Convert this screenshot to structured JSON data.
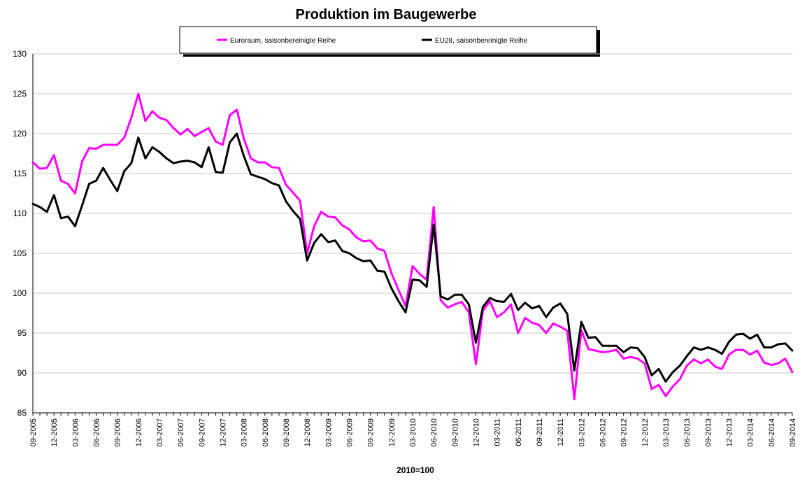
{
  "chart_data": {
    "type": "line",
    "title": "Produktion im Baugewerbe",
    "xlabel": "2010=100",
    "ylabel": "",
    "ylim": [
      85,
      130
    ],
    "yticks": [
      "130",
      "125",
      "120",
      "115",
      "110",
      "105",
      "100",
      "95",
      "90",
      "85"
    ],
    "grid": "horizontal",
    "legend_position": "top",
    "x": [
      "09-2005",
      "10-2005",
      "11-2005",
      "12-2005",
      "01-2006",
      "02-2006",
      "03-2006",
      "04-2006",
      "05-2006",
      "06-2006",
      "07-2006",
      "08-2006",
      "09-2006",
      "10-2006",
      "11-2006",
      "12-2006",
      "01-2007",
      "02-2007",
      "03-2007",
      "04-2007",
      "05-2007",
      "06-2007",
      "07-2007",
      "08-2007",
      "09-2007",
      "10-2007",
      "11-2007",
      "12-2007",
      "01-2008",
      "02-2008",
      "03-2008",
      "04-2008",
      "05-2008",
      "06-2008",
      "07-2008",
      "08-2008",
      "09-2008",
      "10-2008",
      "11-2008",
      "12-2008",
      "01-2009",
      "02-2009",
      "03-2009",
      "04-2009",
      "05-2009",
      "06-2009",
      "07-2009",
      "08-2009",
      "09-2009",
      "10-2009",
      "11-2009",
      "12-2009",
      "01-2010",
      "02-2010",
      "03-2010",
      "04-2010",
      "05-2010",
      "06-2010",
      "07-2010",
      "08-2010",
      "09-2010",
      "10-2010",
      "11-2010",
      "12-2010",
      "01-2011",
      "02-2011",
      "03-2011",
      "04-2011",
      "05-2011",
      "06-2011",
      "07-2011",
      "08-2011",
      "09-2011",
      "10-2011",
      "11-2011",
      "12-2011",
      "01-2012",
      "02-2012",
      "03-2012",
      "04-2012",
      "05-2012",
      "06-2012",
      "07-2012",
      "08-2012",
      "09-2012",
      "10-2012",
      "11-2012",
      "12-2012",
      "01-2013",
      "02-2013",
      "03-2013",
      "04-2013",
      "05-2013",
      "06-2013",
      "07-2013",
      "08-2013",
      "09-2013",
      "10-2013",
      "11-2013",
      "12-2013",
      "01-2014",
      "02-2014",
      "03-2014",
      "04-2014",
      "05-2014",
      "06-2014",
      "07-2014",
      "08-2014",
      "09-2014"
    ],
    "xtick_labels": [
      "09-2005",
      "12-2005",
      "03-2006",
      "06-2006",
      "09-2006",
      "12-2006",
      "03-2007",
      "06-2007",
      "09-2007",
      "12-2007",
      "03-2008",
      "06-2008",
      "09-2008",
      "12-2008",
      "03-2009",
      "06-2009",
      "09-2009",
      "12-2009",
      "03-2010",
      "06-2010",
      "09-2010",
      "12-2010",
      "03-2011",
      "06-2011",
      "09-2011",
      "12-2011",
      "03-2012",
      "06-2012",
      "09-2012",
      "12-2012",
      "03-2013",
      "06-2013",
      "09-2013",
      "12-2013",
      "03-2014",
      "06-2014",
      "09-2014"
    ],
    "series": [
      {
        "name": "Euroraum, saisonbereinigte Reihe",
        "color": "#ff00ff",
        "values": [
          116.4,
          115.6,
          115.7,
          117.3,
          114.1,
          113.7,
          112.5,
          116.5,
          118.2,
          118.1,
          118.6,
          118.6,
          118.6,
          119.5,
          122.0,
          125.0,
          121.6,
          122.8,
          122.0,
          121.7,
          120.7,
          119.9,
          120.6,
          119.7,
          120.2,
          120.7,
          119.0,
          118.6,
          122.3,
          123.0,
          119.4,
          116.9,
          116.4,
          116.4,
          115.8,
          115.7,
          113.6,
          112.6,
          111.6,
          105.0,
          108.4,
          110.2,
          109.6,
          109.5,
          108.5,
          108.0,
          107.0,
          106.5,
          106.6,
          105.6,
          105.3,
          102.5,
          100.4,
          98.4,
          103.4,
          102.4,
          101.7,
          110.8,
          99.1,
          98.2,
          98.6,
          98.9,
          97.6,
          91.1,
          97.8,
          99.0,
          97.0,
          97.6,
          98.6,
          95.0,
          96.9,
          96.3,
          96.0,
          95.0,
          96.2,
          95.8,
          95.3,
          86.7,
          95.4,
          93.0,
          92.8,
          92.6,
          92.7,
          92.9,
          91.8,
          92.0,
          91.8,
          91.2,
          88.0,
          88.5,
          87.1,
          88.3,
          89.2,
          90.9,
          91.7,
          91.2,
          91.7,
          90.8,
          90.5,
          92.3,
          92.9,
          92.9,
          92.3,
          92.8,
          91.3,
          91.0,
          91.2,
          91.8,
          90.1
        ]
      },
      {
        "name": "EU28, saisonbereinigte Reihe",
        "color": "#000000",
        "values": [
          111.2,
          110.8,
          110.2,
          112.3,
          109.4,
          109.6,
          108.4,
          111.0,
          113.7,
          114.1,
          115.7,
          114.2,
          112.8,
          115.3,
          116.3,
          119.5,
          116.9,
          118.3,
          117.7,
          116.9,
          116.3,
          116.5,
          116.6,
          116.4,
          115.8,
          118.3,
          115.2,
          115.1,
          118.9,
          120.0,
          117.2,
          114.9,
          114.6,
          114.3,
          113.8,
          113.5,
          111.5,
          110.3,
          109.3,
          104.1,
          106.3,
          107.4,
          106.4,
          106.6,
          105.3,
          105.0,
          104.4,
          104.0,
          104.1,
          102.8,
          102.7,
          100.6,
          99.0,
          97.6,
          101.7,
          101.6,
          100.8,
          108.6,
          99.6,
          99.2,
          99.8,
          99.8,
          98.6,
          93.8,
          98.3,
          99.4,
          99.0,
          98.9,
          99.9,
          97.9,
          98.8,
          98.1,
          98.4,
          97.0,
          98.2,
          98.7,
          97.4,
          90.3,
          96.4,
          94.4,
          94.5,
          93.4,
          93.4,
          93.4,
          92.6,
          93.2,
          93.1,
          92.0,
          89.7,
          90.5,
          88.9,
          90.1,
          90.9,
          92.1,
          93.2,
          92.9,
          93.2,
          92.9,
          92.4,
          93.9,
          94.8,
          94.9,
          94.3,
          94.8,
          93.2,
          93.2,
          93.6,
          93.7,
          92.8
        ]
      }
    ]
  }
}
